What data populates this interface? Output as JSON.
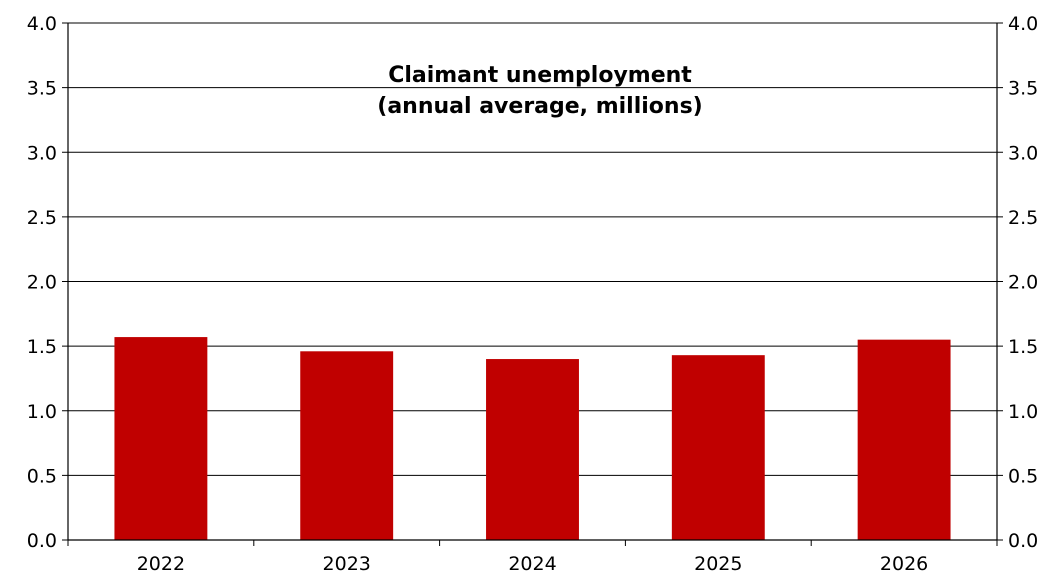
{
  "chart_data": {
    "type": "bar",
    "title": [
      "Claimant unemployment",
      "(annual average, millions)"
    ],
    "categories": [
      "2022",
      "2023",
      "2024",
      "2025",
      "2026"
    ],
    "values": [
      1.57,
      1.46,
      1.4,
      1.43,
      1.55
    ],
    "ylim": [
      0,
      4.0
    ],
    "yticks": [
      "0.0",
      "0.5",
      "1.0",
      "1.5",
      "2.0",
      "2.5",
      "3.0",
      "3.5",
      "4.0"
    ],
    "ytick_values": [
      0,
      0.5,
      1.0,
      1.5,
      2.0,
      2.5,
      3.0,
      3.5,
      4.0
    ],
    "bar_color": "#c00000",
    "grid": true,
    "right_axis": true
  }
}
